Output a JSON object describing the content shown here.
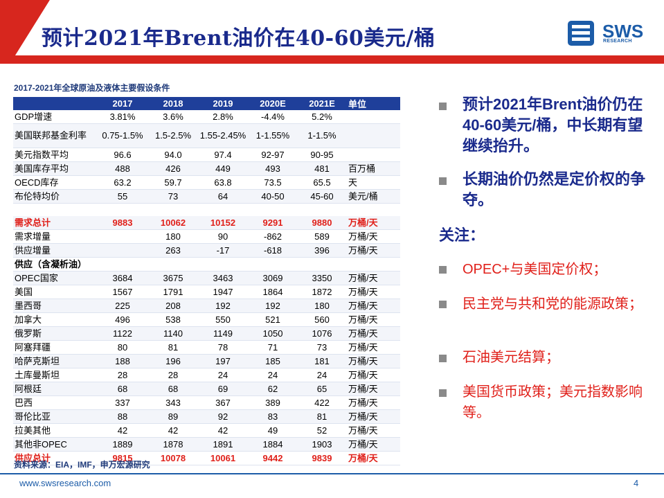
{
  "header": {
    "title": "预计2021年Brent油价在40-60美元/桶",
    "logo_text": "SWS",
    "logo_sub": "RESEARCH",
    "accent_red": "#d7261e",
    "accent_blue": "#1a2a8c"
  },
  "table": {
    "caption": "2017-2021年全球原油及液体主要假设条件",
    "headers": [
      "",
      "2017",
      "2018",
      "2019",
      "2020E",
      "2021E",
      "单位"
    ],
    "rows": [
      {
        "label": "GDP增速",
        "values": [
          "3.81%",
          "3.6%",
          "2.8%",
          "-4.4%",
          "5.2%"
        ],
        "unit": ""
      },
      {
        "label": "美国联邦基金利率",
        "values": [
          "0.75-1.5%",
          "1.5-2.5%",
          "1.55-2.45%",
          "1-1.55%",
          "1-1.5%"
        ],
        "unit": ""
      },
      {
        "label": "美元指数平均",
        "values": [
          "96.6",
          "94.0",
          "97.4",
          "92-97",
          "90-95"
        ],
        "unit": ""
      },
      {
        "label": "美国库存平均",
        "values": [
          "488",
          "426",
          "449",
          "493",
          "481"
        ],
        "unit": "百万桶"
      },
      {
        "label": "OECD库存",
        "values": [
          "63.2",
          "59.7",
          "63.8",
          "73.5",
          "65.5"
        ],
        "unit": "天"
      },
      {
        "label": "布伦特均价",
        "values": [
          "55",
          "73",
          "64",
          "40-50",
          "45-60"
        ],
        "unit": "美元/桶"
      },
      {
        "label": "",
        "values": [
          "",
          "",
          "",
          "",
          ""
        ],
        "unit": ""
      },
      {
        "label": "需求总计",
        "values": [
          "9883",
          "10062",
          "10152",
          "9291",
          "9880"
        ],
        "unit": "万桶/天"
      },
      {
        "label": "需求增量",
        "values": [
          "",
          "180",
          "90",
          "-862",
          "589"
        ],
        "unit": "万桶/天"
      },
      {
        "label": "供应增量",
        "values": [
          "",
          "263",
          "-17",
          "-618",
          "396"
        ],
        "unit": "万桶/天"
      },
      {
        "label": "供应（含凝析油）",
        "values": [
          "",
          "",
          "",
          "",
          ""
        ],
        "unit": ""
      },
      {
        "label": "OPEC国家",
        "values": [
          "3684",
          "3675",
          "3463",
          "3069",
          "3350"
        ],
        "unit": "万桶/天"
      },
      {
        "label": "美国",
        "values": [
          "1567",
          "1791",
          "1947",
          "1864",
          "1872"
        ],
        "unit": "万桶/天"
      },
      {
        "label": "墨西哥",
        "values": [
          "225",
          "208",
          "192",
          "192",
          "180"
        ],
        "unit": "万桶/天"
      },
      {
        "label": "加拿大",
        "values": [
          "496",
          "538",
          "550",
          "521",
          "560"
        ],
        "unit": "万桶/天"
      },
      {
        "label": "俄罗斯",
        "values": [
          "1122",
          "1140",
          "1149",
          "1050",
          "1076"
        ],
        "unit": "万桶/天"
      },
      {
        "label": "阿塞拜疆",
        "values": [
          "80",
          "81",
          "78",
          "71",
          "73"
        ],
        "unit": "万桶/天"
      },
      {
        "label": "哈萨克斯坦",
        "values": [
          "188",
          "196",
          "197",
          "185",
          "181"
        ],
        "unit": "万桶/天"
      },
      {
        "label": "土库曼斯坦",
        "values": [
          "28",
          "28",
          "24",
          "24",
          "24"
        ],
        "unit": "万桶/天"
      },
      {
        "label": "阿根廷",
        "values": [
          "68",
          "68",
          "69",
          "62",
          "65"
        ],
        "unit": "万桶/天"
      },
      {
        "label": "巴西",
        "values": [
          "337",
          "343",
          "367",
          "389",
          "422"
        ],
        "unit": "万桶/天"
      },
      {
        "label": "哥伦比亚",
        "values": [
          "88",
          "89",
          "92",
          "83",
          "81"
        ],
        "unit": "万桶/天"
      },
      {
        "label": "拉美其他",
        "values": [
          "42",
          "42",
          "42",
          "49",
          "52"
        ],
        "unit": "万桶/天"
      },
      {
        "label": "其他非OPEC",
        "values": [
          "1889",
          "1878",
          "1891",
          "1884",
          "1903"
        ],
        "unit": "万桶/天"
      },
      {
        "label": "供应总计",
        "values": [
          "9815",
          "10078",
          "10061",
          "9442",
          "9839"
        ],
        "unit": "万桶/天"
      }
    ],
    "source": "资料来源：EIA，IMF，申万宏源研究"
  },
  "right_panel": {
    "bullets_main": [
      "预计2021年Brent油价仍在40-60美元/桶，中长期有望继续抬升。",
      "长期油价仍然是定价权的争夺。"
    ],
    "focus_label": "关注：",
    "bullets_focus": [
      "OPEC+与美国定价权；",
      "民主党与共和党的能源政策；",
      "石油美元结算；",
      "美国货币政策；美元指数影响等。"
    ]
  },
  "footer": {
    "url": "www.swsresearch.com",
    "page_number": "4"
  }
}
